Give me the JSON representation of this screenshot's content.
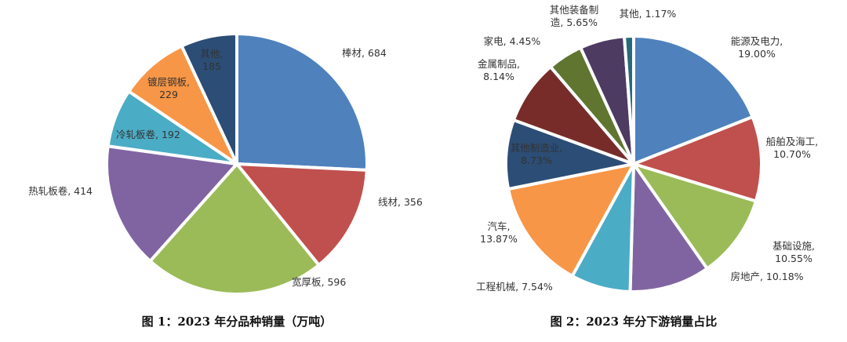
{
  "chart_data": [
    {
      "type": "pie",
      "title": "图 1：2023 年分品种销量（万吨）",
      "categories": [
        "棒材",
        "线材",
        "宽厚板",
        "热轧板卷",
        "冷轧板卷",
        "镀层钢板",
        "其他"
      ],
      "values": [
        684,
        356,
        596,
        414,
        192,
        229,
        185
      ],
      "labels": [
        "棒材, 684",
        "线材, 356",
        "宽厚板, 596",
        "热轧板卷, 414",
        "冷轧板卷, 192",
        "镀层钢板,\n229",
        "其他,\n185"
      ],
      "colors": [
        "#4f81bd",
        "#c0504d",
        "#9bbb59",
        "#8064a2",
        "#4bacc6",
        "#f79646",
        "#2c4d75"
      ]
    },
    {
      "type": "pie",
      "title": "图 2：2023 年分下游销量占比",
      "categories": [
        "能源及电力",
        "船舶及海工",
        "基础设施",
        "房地产",
        "工程机械",
        "汽车",
        "其他制造业",
        "金属制品",
        "家电",
        "其他装备制造",
        "其他"
      ],
      "values": [
        19.0,
        10.7,
        10.55,
        10.18,
        7.54,
        13.87,
        8.73,
        8.14,
        4.45,
        5.65,
        1.17
      ],
      "labels": [
        "能源及电力,\n19.00%",
        "船舶及海工,\n10.70%",
        "基础设施,\n10.55%",
        "房地产, 10.18%",
        "工程机械, 7.54%",
        "汽车,\n13.87%",
        "其他制造业,\n8.73%",
        "金属制品,\n8.14%",
        "家电, 4.45%",
        "其他装备制\n造, 5.65%",
        "其他, 1.17%"
      ],
      "colors": [
        "#4f81bd",
        "#c0504d",
        "#9bbb59",
        "#8064a2",
        "#4bacc6",
        "#f79646",
        "#2c4d75",
        "#772c2a",
        "#5f7530",
        "#4d3b62",
        "#276a7c"
      ]
    }
  ]
}
